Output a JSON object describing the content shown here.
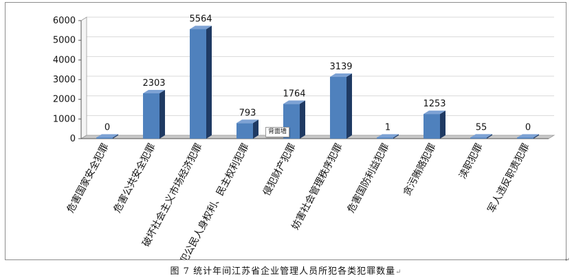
{
  "caption": "图 7 统计年间江苏省企业管理人员所犯各类犯罪数量",
  "tooltip": "背面墙",
  "colors": {
    "bar_front": "#4f81bd",
    "bar_side": "#1f3a63",
    "bar_top": "#7da2d4",
    "floor": "#c8c8c8",
    "grid": "#d9d9d9"
  },
  "chart_data": {
    "type": "bar",
    "style": "3d-column",
    "categories": [
      "危害国家安全犯罪",
      "危害公共安全犯罪",
      "破坏社会主义市场经济犯罪",
      "侵犯公民人身权利、民主权利犯罪",
      "侵犯财产犯罪",
      "妨害社会管理秩序犯罪",
      "危害国防利益犯罪",
      "贪污贿赂犯罪",
      "渎职犯罪",
      "军人违反职责犯罪"
    ],
    "values": [
      0,
      2303,
      5564,
      793,
      1764,
      3139,
      1,
      1253,
      55,
      0
    ],
    "data_labels": [
      "0",
      "2303",
      "5564",
      "793",
      "1764",
      "3139",
      "1",
      "1253",
      "55",
      "0"
    ],
    "y_ticks": [
      "0",
      "1000",
      "2000",
      "3000",
      "4000",
      "5000",
      "6000"
    ],
    "ylim": [
      0,
      6000
    ],
    "grid": true,
    "legend": "none"
  }
}
